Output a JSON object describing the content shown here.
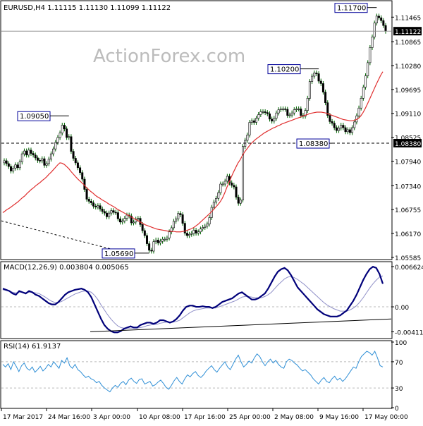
{
  "window": {
    "symbol_line": "EURUSD,H4  1.11115 1.11130 1.11099 1.11122",
    "watermark": "ActionForex.com"
  },
  "chart_data": [
    {
      "type": "candlestick",
      "panel": "price",
      "ylim": [
        1.0555,
        1.1185
      ],
      "y_ticks": [
        "1.11465",
        "1.10865",
        "1.10280",
        "1.09695",
        "1.09110",
        "1.08525",
        "1.07940",
        "1.07340",
        "1.06755",
        "1.06170",
        "1.05585"
      ],
      "current_price_label": "1.11122",
      "hline_label": "1.08380",
      "annotations": [
        {
          "text": "1.09050",
          "value": 1.0905
        },
        {
          "text": "1.05690",
          "value": 1.0569
        },
        {
          "text": "1.10200",
          "value": 1.102
        },
        {
          "text": "1.08380",
          "value": 1.0838
        },
        {
          "text": "1.11700",
          "value": 1.117
        }
      ],
      "series": [
        {
          "type": "candles",
          "close": [
            1.0795,
            1.0788,
            1.0781,
            1.077,
            1.0777,
            1.0785,
            1.0778,
            1.0792,
            1.0812,
            1.0819,
            1.0809,
            1.0821,
            1.0813,
            1.0809,
            1.0802,
            1.0796,
            1.0795,
            1.08,
            1.0784,
            1.0788,
            1.0799,
            1.0812,
            1.0824,
            1.084,
            1.0852,
            1.0863,
            1.0882,
            1.0873,
            1.0852,
            1.0854,
            1.0818,
            1.0801,
            1.079,
            1.0778,
            1.0766,
            1.075,
            1.0725,
            1.0701,
            1.0696,
            1.0692,
            1.0684,
            1.0682,
            1.0685,
            1.0677,
            1.0671,
            1.0667,
            1.0658,
            1.0667,
            1.0673,
            1.0669,
            1.0668,
            1.0653,
            1.0645,
            1.0648,
            1.0654,
            1.0662,
            1.066,
            1.0643,
            1.0645,
            1.0652,
            1.0654,
            1.0639,
            1.0624,
            1.0612,
            1.0592,
            1.0576,
            1.0574,
            1.0597,
            1.0601,
            1.0594,
            1.0598,
            1.0603,
            1.0603,
            1.0606,
            1.0621,
            1.0631,
            1.0647,
            1.0653,
            1.0666,
            1.0663,
            1.0642,
            1.0618,
            1.0612,
            1.0615,
            1.0617,
            1.0625,
            1.0618,
            1.0621,
            1.0628,
            1.0632,
            1.0635,
            1.064,
            1.0656,
            1.0681,
            1.0694,
            1.0703,
            1.0717,
            1.0738,
            1.0738,
            1.0745,
            1.0757,
            1.0741,
            1.0735,
            1.0731,
            1.0706,
            1.0691,
            1.0699,
            1.083,
            1.0845,
            1.0858,
            1.0889,
            1.0893,
            1.0889,
            1.0899,
            1.0908,
            1.0915,
            1.0915,
            1.0913,
            1.091,
            1.0897,
            1.0892,
            1.0899,
            1.0912,
            1.092,
            1.0922,
            1.0922,
            1.0921,
            1.0906,
            1.0907,
            1.0912,
            1.092,
            1.0922,
            1.0922,
            1.0906,
            1.0904,
            1.0918,
            1.0948,
            1.0989,
            1.1002,
            1.101,
            1.1008,
            1.099,
            1.0984,
            1.0963,
            1.0937,
            1.0906,
            1.0891,
            1.0887,
            1.0876,
            1.0869,
            1.0875,
            1.0882,
            1.0876,
            1.0866,
            1.0871,
            1.0864,
            1.0876,
            1.089,
            1.0905,
            1.0924,
            1.0948,
            1.0975,
            1.1003,
            1.1035,
            1.1072,
            1.1098,
            1.1132,
            1.1149,
            1.1145,
            1.1138,
            1.1126,
            1.1112
          ]
        },
        {
          "type": "ema",
          "color": "#e03030",
          "values": [
            1.0668,
            1.0672,
            1.0676,
            1.0679,
            1.0683,
            1.0687,
            1.0691,
            1.0695,
            1.07,
            1.0705,
            1.0709,
            1.0715,
            1.072,
            1.0725,
            1.0729,
            1.0734,
            1.0738,
            1.0742,
            1.0747,
            1.0751,
            1.0756,
            1.0762,
            1.0767,
            1.0773,
            1.0779,
            1.0785,
            1.079,
            1.0789,
            1.0786,
            1.0781,
            1.0776,
            1.0769,
            1.0763,
            1.0757,
            1.0751,
            1.0746,
            1.0741,
            1.0736,
            1.073,
            1.0725,
            1.072,
            1.0716,
            1.0711,
            1.0707,
            1.0704,
            1.07,
            1.0697,
            1.0694,
            1.069,
            1.0687,
            1.0684,
            1.0681,
            1.0677,
            1.0674,
            1.0671,
            1.0668,
            1.0665,
            1.0662,
            1.0659,
            1.0656,
            1.0653,
            1.065,
            1.0647,
            1.0644,
            1.0641,
            1.0638,
            1.0636,
            1.0634,
            1.0632,
            1.063,
            1.0628,
            1.0627,
            1.0626,
            1.0625,
            1.0624,
            1.0623,
            1.0623,
            1.0622,
            1.0622,
            1.0621,
            1.0621,
            1.0621,
            1.0622,
            1.0623,
            1.0625,
            1.0627,
            1.0629,
            1.0632,
            1.0636,
            1.064,
            1.0645,
            1.065,
            1.0655,
            1.066,
            1.0665,
            1.067,
            1.0676,
            1.0682,
            1.0688,
            1.0695,
            1.0704,
            1.0716,
            1.073,
            1.0742,
            1.0755,
            1.0767,
            1.0778,
            1.0789,
            1.0797,
            1.0807,
            1.0816,
            1.0823,
            1.083,
            1.0837,
            1.0842,
            1.0847,
            1.0851,
            1.0855,
            1.0859,
            1.0863,
            1.0866,
            1.0869,
            1.0872,
            1.0875,
            1.0877,
            1.088,
            1.0882,
            1.0885,
            1.0887,
            1.0889,
            1.0891,
            1.0893,
            1.0895,
            1.0897,
            1.0899,
            1.0901,
            1.0903,
            1.0905,
            1.0907,
            1.0909,
            1.0911,
            1.0912,
            1.0913,
            1.0914,
            1.0914,
            1.0914,
            1.0913,
            1.0912,
            1.091,
            1.0908,
            1.0906,
            1.0904,
            1.0902,
            1.09,
            1.0898,
            1.0896,
            1.0895,
            1.0894,
            1.0893,
            1.0893,
            1.0894,
            1.0896,
            1.0899,
            1.0905,
            1.0913,
            1.0923,
            1.0934,
            1.0946,
            1.0958,
            1.097,
            1.0982,
            1.0993,
            1.1004,
            1.1013
          ]
        }
      ],
      "trendline": {
        "from": 1.0648,
        "to": 1.0578,
        "style": "dashed"
      }
    },
    {
      "type": "line",
      "panel": "macd",
      "title": "MACD(12,26,9) 0.003804 0.005065",
      "y_ticks": [
        "0.006624",
        "0.00",
        "-0.004116"
      ],
      "ylim": [
        -0.0051,
        0.0072
      ],
      "series": [
        {
          "name": "MACD",
          "color": "#00007a",
          "values": [
            0.003,
            0.0028,
            0.0026,
            0.0022,
            0.002,
            0.0026,
            0.0024,
            0.0022,
            0.0026,
            0.0024,
            0.002,
            0.0018,
            0.0014,
            0.001,
            0.0006,
            0.0004,
            0.0004,
            0.0008,
            0.0014,
            0.002,
            0.0024,
            0.0026,
            0.0028,
            0.0029,
            0.003,
            0.0028,
            0.0024,
            0.0016,
            0.0004,
            -0.0008,
            -0.002,
            -0.003,
            -0.0036,
            -0.004,
            -0.0042,
            -0.0042,
            -0.004,
            -0.0036,
            -0.0034,
            -0.0032,
            -0.0034,
            -0.0034,
            -0.003,
            -0.0028,
            -0.0026,
            -0.0026,
            -0.0028,
            -0.0026,
            -0.0022,
            -0.0022,
            -0.0024,
            -0.0026,
            -0.0024,
            -0.002,
            -0.0014,
            -0.0006,
            0.0,
            0.0002,
            0.0002,
            0.0,
            0.0,
            0.0001,
            0.0,
            0.0,
            -0.0002,
            0.0,
            0.0004,
            0.0008,
            0.001,
            0.0012,
            0.0014,
            0.0018,
            0.0022,
            0.0024,
            0.002,
            0.0016,
            0.0012,
            0.0012,
            0.0014,
            0.0018,
            0.0022,
            0.003,
            0.004,
            0.005,
            0.0058,
            0.0062,
            0.0064,
            0.006,
            0.0052,
            0.0042,
            0.0032,
            0.0026,
            0.002,
            0.0014,
            0.0008,
            0.0002,
            -0.0004,
            -0.0008,
            -0.0012,
            -0.0014,
            -0.0016,
            -0.0016,
            -0.0016,
            -0.0014,
            -0.001,
            -0.0006,
            0.0002,
            0.001,
            0.002,
            0.0032,
            0.0044,
            0.0054,
            0.0062,
            0.0066,
            0.0064,
            0.0054,
            0.0038
          ]
        },
        {
          "name": "Signal",
          "color": "#9090c8",
          "values": [
            0.0028,
            0.0027,
            0.0026,
            0.0024,
            0.0023,
            0.0024,
            0.0024,
            0.0023,
            0.0024,
            0.0024,
            0.0023,
            0.0022,
            0.0019,
            0.0016,
            0.0012,
            0.0009,
            0.0007,
            0.0007,
            0.0009,
            0.0012,
            0.0015,
            0.0018,
            0.0021,
            0.0023,
            0.0025,
            0.0026,
            0.0026,
            0.0024,
            0.0019,
            0.0012,
            0.0003,
            -0.0005,
            -0.0013,
            -0.002,
            -0.0026,
            -0.0031,
            -0.0034,
            -0.0035,
            -0.0035,
            -0.0035,
            -0.0035,
            -0.0035,
            -0.0034,
            -0.0033,
            -0.0031,
            -0.003,
            -0.0029,
            -0.0029,
            -0.0027,
            -0.0026,
            -0.0025,
            -0.0025,
            -0.0025,
            -0.0024,
            -0.0022,
            -0.0018,
            -0.0014,
            -0.001,
            -0.0007,
            -0.0005,
            -0.0004,
            -0.0003,
            -0.0002,
            -0.0002,
            -0.0002,
            -0.0002,
            0.0,
            0.0002,
            0.0004,
            0.0006,
            0.0008,
            0.001,
            0.0013,
            0.0016,
            0.0017,
            0.0017,
            0.0016,
            0.0015,
            0.0015,
            0.0015,
            0.0017,
            0.002,
            0.0024,
            0.003,
            0.0036,
            0.0041,
            0.0046,
            0.0049,
            0.005,
            0.0048,
            0.0045,
            0.0041,
            0.0037,
            0.0032,
            0.0027,
            0.0022,
            0.0017,
            0.0012,
            0.0007,
            0.0003,
            0.0,
            -0.0003,
            -0.0005,
            -0.0007,
            -0.0007,
            -0.0007,
            -0.0005,
            -0.0002,
            0.0002,
            0.0008,
            0.0015,
            0.0023,
            0.0031,
            0.0038,
            0.0044,
            0.0049,
            0.0051
          ]
        }
      ],
      "trendline": {
        "from": -0.0041,
        "to": -0.002
      }
    },
    {
      "type": "line",
      "panel": "rsi",
      "title": "RSI(14) 61.9137",
      "y_ticks": [
        "100",
        "70",
        "30",
        "0"
      ],
      "ylim": [
        0,
        100
      ],
      "levels": [
        70,
        30
      ],
      "series": [
        {
          "name": "RSI",
          "color": "#2f8fd6",
          "values": [
            66,
            62,
            67,
            58,
            70,
            63,
            55,
            64,
            68,
            60,
            57,
            62,
            54,
            58,
            63,
            56,
            60,
            66,
            62,
            70,
            65,
            60,
            72,
            68,
            76,
            64,
            60,
            66,
            58,
            55,
            50,
            46,
            48,
            44,
            42,
            38,
            40,
            34,
            30,
            27,
            24,
            30,
            34,
            31,
            37,
            40,
            35,
            42,
            45,
            40,
            37,
            43,
            44,
            36,
            38,
            40,
            33,
            35,
            39,
            42,
            37,
            31,
            28,
            34,
            41,
            46,
            40,
            36,
            44,
            50,
            47,
            52,
            55,
            49,
            46,
            50,
            56,
            60,
            64,
            58,
            54,
            60,
            65,
            70,
            62,
            58,
            66,
            74,
            80,
            70,
            62,
            66,
            71,
            68,
            76,
            82,
            78,
            70,
            64,
            70,
            74,
            68,
            72,
            66,
            62,
            60,
            70,
            74,
            72,
            68,
            65,
            60,
            56,
            58,
            54,
            50,
            44,
            40,
            36,
            42,
            46,
            40,
            38,
            44,
            48,
            42,
            45,
            40,
            44,
            50,
            56,
            62,
            60,
            70,
            78,
            82,
            86,
            84,
            80,
            86,
            76,
            64,
            62
          ]
        }
      ]
    }
  ],
  "x_axis": {
    "labels": [
      "17 Mar 2017",
      "24 Mar 16:00",
      "3 Apr 00:00",
      "10 Apr 08:00",
      "17 Apr 16:00",
      "25 Apr 00:00",
      "2 May 08:00",
      "9 May 16:00",
      "17 May 00:00"
    ]
  }
}
